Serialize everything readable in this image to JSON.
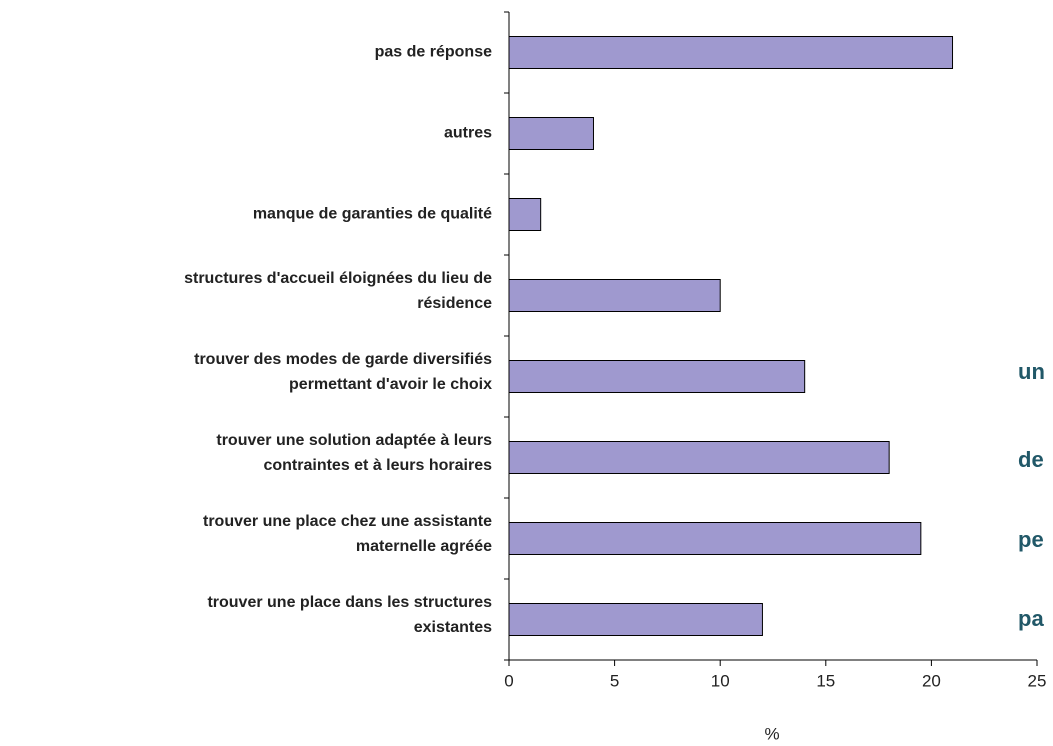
{
  "chart_data": {
    "type": "barh",
    "categories": [
      [
        "pas de réponse"
      ],
      [
        "autres"
      ],
      [
        "manque de garanties de qualité"
      ],
      [
        "structures d'accueil éloignées du lieu de",
        "résidence"
      ],
      [
        "trouver des modes de garde diversifiés",
        "permettant d'avoir le choix"
      ],
      [
        "trouver une solution adaptée à leurs",
        "contraintes et à leurs horaires"
      ],
      [
        "trouver une place chez une assistante",
        "maternelle agréée"
      ],
      [
        "trouver une place dans les structures",
        "existantes"
      ]
    ],
    "values": [
      21,
      4,
      1.5,
      10,
      14,
      18,
      19.5,
      12
    ],
    "color": "#9f99cf",
    "xlim": [
      0,
      25
    ],
    "xticks": [
      0,
      5,
      10,
      15,
      20,
      25
    ],
    "xlabel": "%",
    "annotations": [
      "un",
      "de",
      "pe",
      "pa"
    ],
    "annotation_color": "#215868"
  }
}
